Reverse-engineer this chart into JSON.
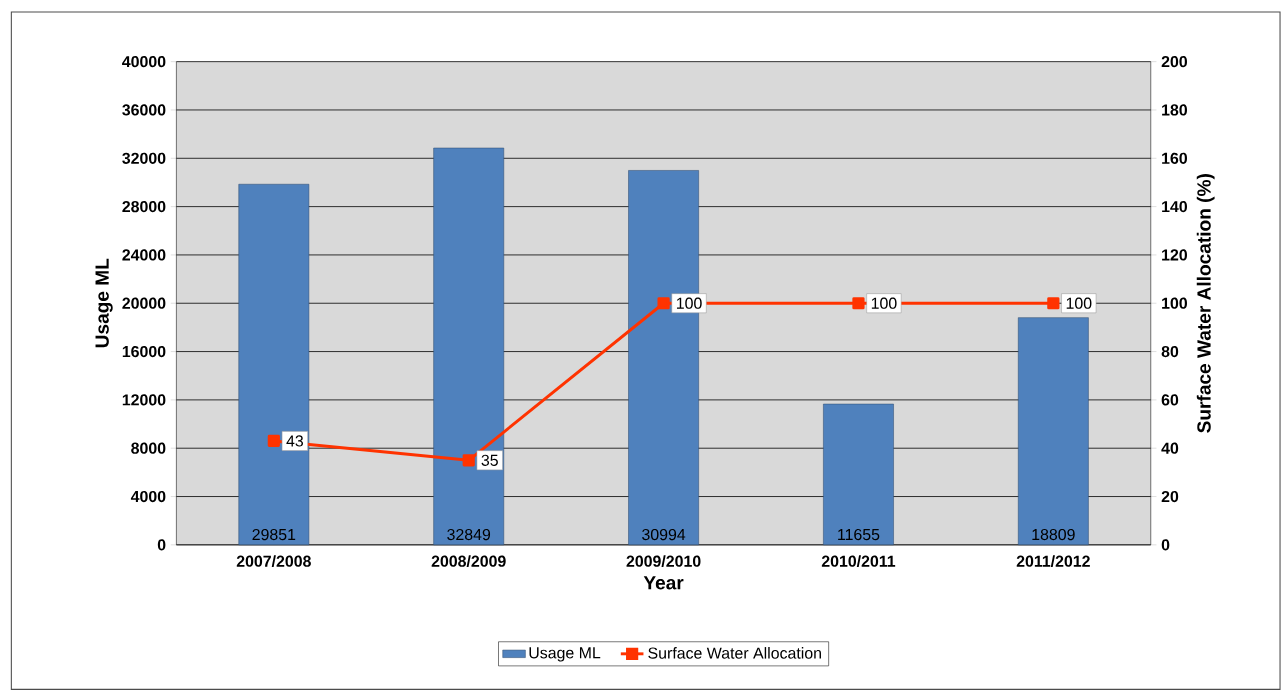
{
  "chart_data": {
    "type": "bar",
    "xlabel": "Year",
    "ylabel": "Usage ML",
    "y2label": "Surface Water Allocation (%)",
    "categories": [
      "2007/2008",
      "2008/2009",
      "2009/2010",
      "2010/2011",
      "2011/2012"
    ],
    "series": [
      {
        "name": "Usage ML",
        "color": "#4f81bd",
        "values": [
          29851,
          32849,
          30994,
          11655,
          18809
        ]
      },
      {
        "name": "Surface Water Allocation",
        "type": "line",
        "axis": "y2",
        "color": "#ff3300",
        "values": [
          43,
          35,
          100,
          100,
          100
        ]
      }
    ],
    "ylim": [
      0,
      40000
    ],
    "yticks": [
      0,
      4000,
      8000,
      12000,
      16000,
      20000,
      24000,
      28000,
      32000,
      36000,
      40000
    ],
    "y2lim": [
      0,
      200
    ],
    "y2ticks": [
      0,
      20,
      40,
      60,
      80,
      100,
      120,
      140,
      160,
      180,
      200
    ],
    "grid": "y",
    "legend": "bottom",
    "marker": "square",
    "data_labels": true
  }
}
